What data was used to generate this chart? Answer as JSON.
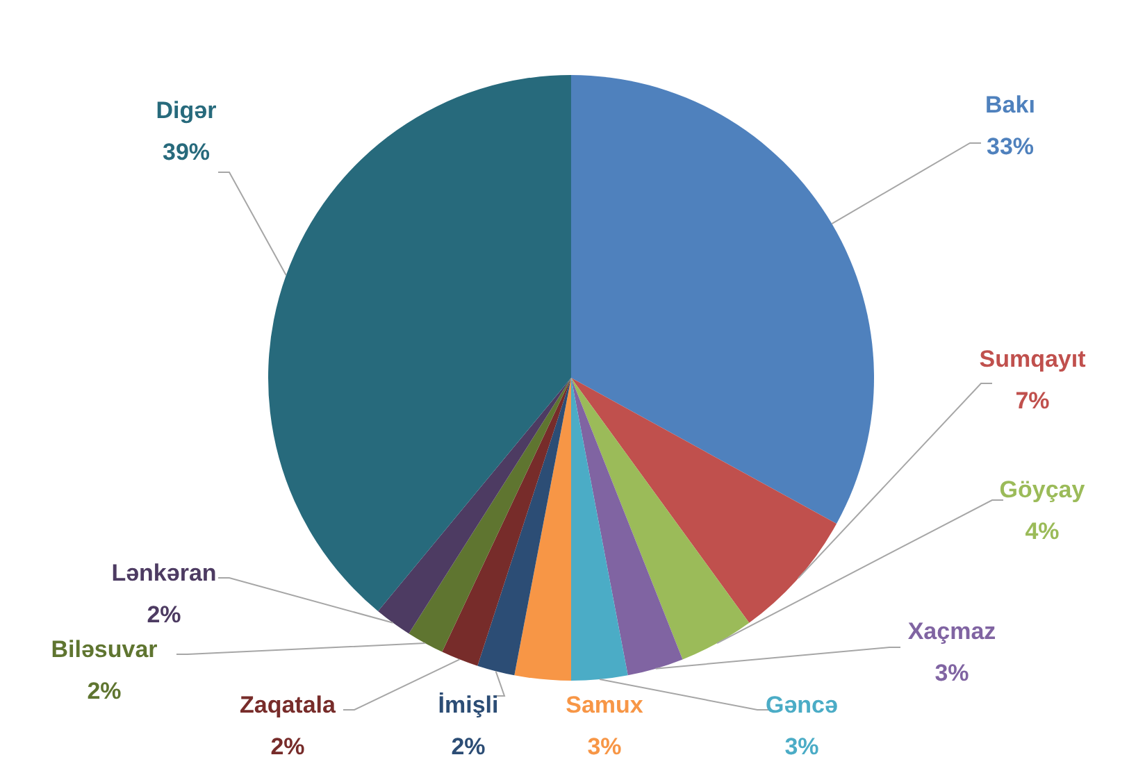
{
  "chart_data": {
    "type": "pie",
    "categories": [
      "Bakı",
      "Sumqayıt",
      "Göyçay",
      "Xaçmaz",
      "Gəncə",
      "Samux",
      "İmişli",
      "Zaqatala",
      "Biləsuvar",
      "Lənkəran",
      "Digər"
    ],
    "values": [
      33,
      7,
      4,
      3,
      3,
      3,
      2,
      2,
      2,
      2,
      39
    ],
    "colors": [
      "#4f81bd",
      "#c0504d",
      "#9bbb59",
      "#8064a2",
      "#4bacc6",
      "#f79646",
      "#2c4d75",
      "#772c2a",
      "#5f7530",
      "#4d3b62",
      "#276a7c"
    ],
    "value_labels": [
      "33%",
      "7%",
      "4%",
      "3%",
      "3%",
      "3%",
      "2%",
      "2%",
      "2%",
      "2%",
      "39%"
    ]
  }
}
